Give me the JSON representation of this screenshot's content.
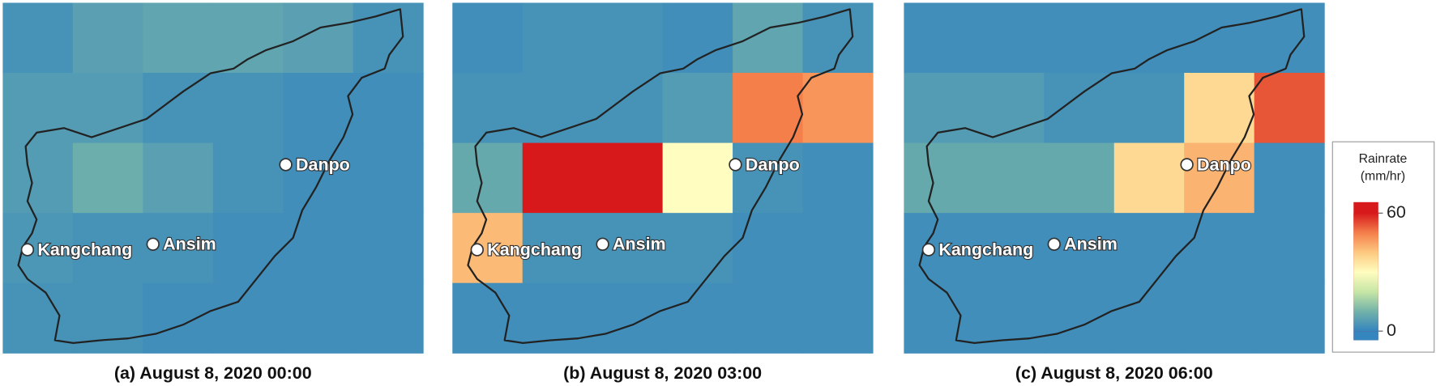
{
  "legend": {
    "title": "Rainrate",
    "unit": "(mm/hr)",
    "range": [
      0,
      60
    ],
    "ticks": [
      0,
      60
    ],
    "colormap": [
      "#3585bf",
      "#72b2a9",
      "#c6e6a6",
      "#fffdbf",
      "#fdc981",
      "#f47f4b",
      "#d7191c"
    ]
  },
  "places": [
    "Danpo",
    "Kangchang",
    "Ansim"
  ],
  "panels": [
    {
      "caption": "(a) August 8, 2020 00:00",
      "cells": [
        [
          3,
          6,
          7,
          7,
          6,
          3
        ],
        [
          5,
          5,
          3,
          3,
          2,
          2
        ],
        [
          5,
          9,
          6,
          3,
          2,
          2
        ],
        [
          4,
          3,
          3,
          2,
          2,
          2
        ],
        [
          3,
          3,
          2,
          2,
          2,
          2
        ]
      ]
    },
    {
      "caption": "(b) August 8, 2020 03:00",
      "cells": [
        [
          2,
          3,
          3,
          2,
          7,
          3
        ],
        [
          3,
          3,
          3,
          5,
          50,
          47
        ],
        [
          8,
          60,
          60,
          30,
          3,
          2
        ],
        [
          42,
          3,
          3,
          3,
          2,
          2
        ],
        [
          2,
          2,
          2,
          2,
          2,
          2
        ]
      ]
    },
    {
      "caption": "(c) August 8, 2020 06:00",
      "cells": [
        [
          2,
          2,
          2,
          2,
          2,
          2
        ],
        [
          5,
          5,
          3,
          3,
          37,
          54
        ],
        [
          8,
          8,
          8,
          37,
          43,
          2
        ],
        [
          2,
          2,
          2,
          2,
          2,
          2
        ],
        [
          2,
          2,
          2,
          2,
          2,
          2
        ]
      ]
    }
  ]
}
